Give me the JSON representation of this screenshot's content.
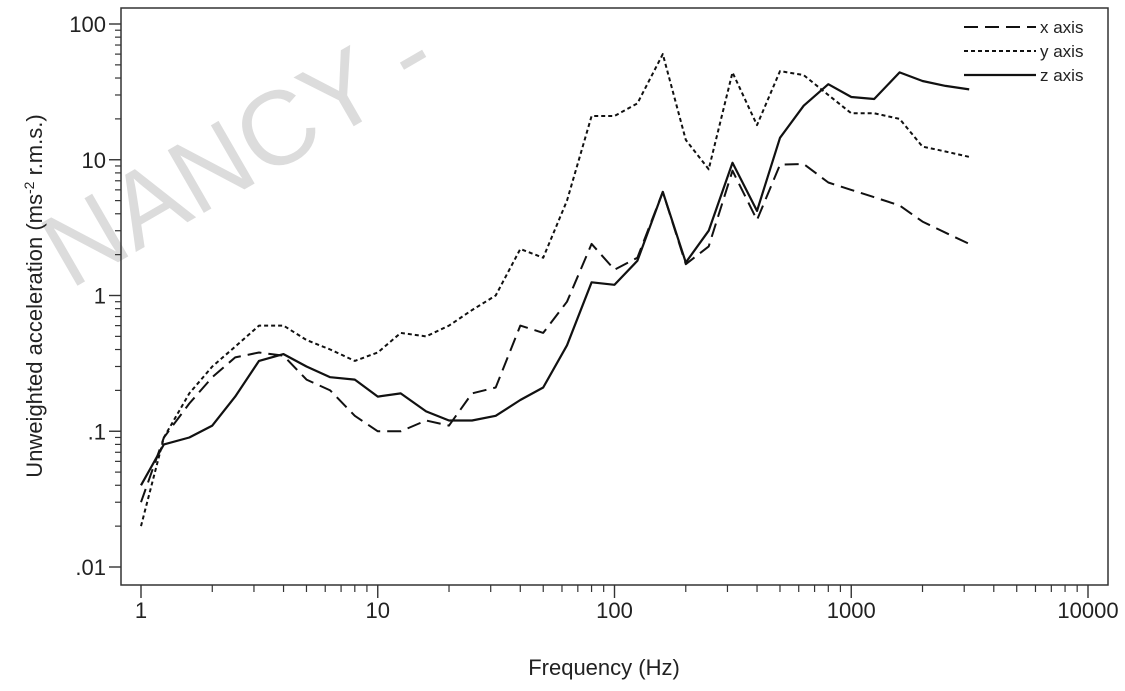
{
  "watermark": "NANCY -",
  "chart_data": {
    "type": "line",
    "title": "",
    "xlabel": "Frequency (Hz)",
    "ylabel_main": "Unweighted acceleration (ms",
    "ylabel_sup": "-2",
    "ylabel_tail": " r.m.s.)",
    "x_scale": "log",
    "y_scale": "log",
    "xlim": [
      1,
      10000
    ],
    "ylim": [
      0.01,
      100
    ],
    "x_ticks": [
      {
        "value": 1,
        "label": "1"
      },
      {
        "value": 10,
        "label": "10"
      },
      {
        "value": 100,
        "label": "100"
      },
      {
        "value": 1000,
        "label": "1000"
      },
      {
        "value": 10000,
        "label": "10000"
      }
    ],
    "y_ticks": [
      {
        "value": 0.01,
        "label": ".01"
      },
      {
        "value": 0.1,
        "label": ".1"
      },
      {
        "value": 1,
        "label": "1"
      },
      {
        "value": 10,
        "label": "10"
      },
      {
        "value": 100,
        "label": "100"
      }
    ],
    "grid": false,
    "legend_position": "top-right",
    "series": [
      {
        "name": "x axis",
        "style": "dashed",
        "color": "#111111",
        "points": [
          [
            1,
            0.03
          ],
          [
            1.25,
            0.09
          ],
          [
            1.6,
            0.16
          ],
          [
            2,
            0.25
          ],
          [
            2.5,
            0.35
          ],
          [
            3.15,
            0.38
          ],
          [
            4,
            0.36
          ],
          [
            5,
            0.24
          ],
          [
            6.3,
            0.2
          ],
          [
            8,
            0.13
          ],
          [
            10,
            0.1
          ],
          [
            12.5,
            0.1
          ],
          [
            16,
            0.12
          ],
          [
            20,
            0.11
          ],
          [
            25,
            0.19
          ],
          [
            31.5,
            0.21
          ],
          [
            40,
            0.6
          ],
          [
            50,
            0.53
          ],
          [
            63,
            0.9
          ],
          [
            80,
            2.4
          ],
          [
            100,
            1.55
          ],
          [
            125,
            1.9
          ],
          [
            160,
            5.8
          ],
          [
            200,
            1.7
          ],
          [
            250,
            2.3
          ],
          [
            315,
            8.3
          ],
          [
            400,
            3.6
          ],
          [
            500,
            9.2
          ],
          [
            630,
            9.3
          ],
          [
            800,
            6.8
          ],
          [
            1000,
            6.0
          ],
          [
            1250,
            5.3
          ],
          [
            1600,
            4.6
          ],
          [
            2000,
            3.5
          ],
          [
            2500,
            2.9
          ],
          [
            3150,
            2.4
          ]
        ]
      },
      {
        "name": "y axis",
        "style": "dotted",
        "color": "#111111",
        "points": [
          [
            1,
            0.02
          ],
          [
            1.25,
            0.09
          ],
          [
            1.6,
            0.19
          ],
          [
            2,
            0.3
          ],
          [
            2.5,
            0.42
          ],
          [
            3.15,
            0.6
          ],
          [
            4,
            0.6
          ],
          [
            5,
            0.47
          ],
          [
            6.3,
            0.4
          ],
          [
            8,
            0.33
          ],
          [
            10,
            0.38
          ],
          [
            12.5,
            0.53
          ],
          [
            16,
            0.5
          ],
          [
            20,
            0.6
          ],
          [
            25,
            0.78
          ],
          [
            31.5,
            1.0
          ],
          [
            40,
            2.2
          ],
          [
            50,
            1.9
          ],
          [
            63,
            5.0
          ],
          [
            80,
            21
          ],
          [
            100,
            21
          ],
          [
            125,
            26
          ],
          [
            160,
            60
          ],
          [
            200,
            14
          ],
          [
            250,
            8.5
          ],
          [
            315,
            44
          ],
          [
            400,
            18
          ],
          [
            500,
            45
          ],
          [
            630,
            42
          ],
          [
            800,
            30
          ],
          [
            1000,
            22
          ],
          [
            1250,
            22
          ],
          [
            1600,
            20
          ],
          [
            2000,
            12.5
          ],
          [
            2500,
            11.5
          ],
          [
            3150,
            10.5
          ]
        ]
      },
      {
        "name": "z axis",
        "style": "solid",
        "color": "#111111",
        "points": [
          [
            1,
            0.04
          ],
          [
            1.25,
            0.08
          ],
          [
            1.6,
            0.09
          ],
          [
            2,
            0.11
          ],
          [
            2.5,
            0.18
          ],
          [
            3.15,
            0.33
          ],
          [
            4,
            0.37
          ],
          [
            5,
            0.3
          ],
          [
            6.3,
            0.25
          ],
          [
            8,
            0.24
          ],
          [
            10,
            0.18
          ],
          [
            12.5,
            0.19
          ],
          [
            16,
            0.14
          ],
          [
            20,
            0.12
          ],
          [
            25,
            0.12
          ],
          [
            31.5,
            0.13
          ],
          [
            40,
            0.17
          ],
          [
            50,
            0.21
          ],
          [
            63,
            0.43
          ],
          [
            80,
            1.25
          ],
          [
            100,
            1.2
          ],
          [
            125,
            1.8
          ],
          [
            160,
            5.8
          ],
          [
            200,
            1.75
          ],
          [
            250,
            3.0
          ],
          [
            315,
            9.5
          ],
          [
            400,
            4.2
          ],
          [
            500,
            14.5
          ],
          [
            630,
            25
          ],
          [
            800,
            36
          ],
          [
            1000,
            29
          ],
          [
            1250,
            28
          ],
          [
            1600,
            44
          ],
          [
            2000,
            38
          ],
          [
            2500,
            35
          ],
          [
            3150,
            33
          ]
        ]
      }
    ]
  }
}
